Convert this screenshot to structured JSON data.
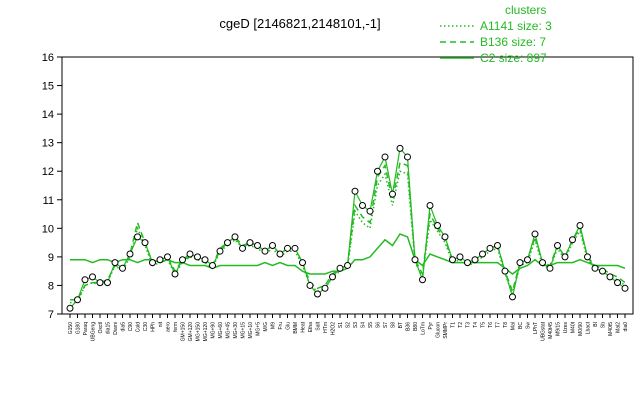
{
  "chart_data": {
    "type": "line",
    "title": "cgeD [2146821,2148101,-1]",
    "xlabel": "",
    "ylabel": "",
    "ylim": [
      7,
      16
    ],
    "yticks": [
      7,
      8,
      9,
      10,
      11,
      12,
      13,
      14,
      15,
      16
    ],
    "legend": {
      "title": "clusters",
      "placement": "top-right",
      "entries": [
        {
          "label": "A1141 size: 3",
          "style": "dotted"
        },
        {
          "label": "B136 size: 7",
          "style": "dashed"
        },
        {
          "label": "C2 size: 897",
          "style": "solid"
        }
      ]
    },
    "line_color": "#22bb22",
    "point_color": "#000000",
    "categories": [
      "G150",
      "G180",
      "Paraq",
      "UBGeng",
      "Oxctl",
      "dia15",
      "Diami",
      "dia5",
      "C90",
      "Cold",
      "C30",
      "HPh",
      "nit",
      "aero",
      "ferm",
      "GM+150",
      "GM+120",
      "MG+150",
      "MG+120",
      "MG+90",
      "MG+60",
      "MG+45",
      "MG+30",
      "MG+15",
      "MG+10",
      "MG+5",
      "M/G",
      "M9",
      "Fru",
      "Glu",
      "BMM",
      "Heat",
      "Etha",
      "Salt",
      "HTm",
      "H2O2",
      "S1",
      "S2",
      "S3",
      "S4",
      "S5",
      "S6",
      "S7",
      "S8",
      "BT",
      "B36",
      "B80",
      "LoTm",
      "Pyr",
      "Glucon",
      "SMMPr",
      "T1",
      "T2",
      "T3",
      "T4",
      "T5",
      "T6",
      "T7",
      "T8",
      "Mal",
      "BC",
      "Sw",
      "LPhT",
      "UBGstat",
      "M40t45",
      "M9/15",
      "Uzes",
      "M40t",
      "M0/90",
      "Lbact",
      "BI",
      "Sb",
      "M40t5",
      "Mal2",
      "dia0"
    ],
    "series": [
      {
        "values": [
          7.2,
          7.5,
          8.2,
          8.3,
          8.1,
          8.1,
          8.8,
          8.6,
          9.1,
          9.7,
          9.5,
          8.8,
          8.9,
          9.0,
          8.4,
          8.9,
          9.1,
          9.0,
          8.9,
          8.7,
          9.2,
          9.5,
          9.7,
          9.3,
          9.5,
          9.4,
          9.2,
          9.4,
          9.1,
          9.3,
          9.3,
          8.8,
          8.0,
          7.7,
          7.9,
          8.3,
          8.6,
          8.7,
          11.3,
          10.8,
          10.6,
          12.0,
          12.5,
          11.2,
          12.8,
          12.5,
          8.9,
          8.2,
          10.8,
          10.1,
          9.7,
          8.9,
          9.0,
          8.8,
          8.9,
          9.1,
          9.3,
          9.4,
          8.5,
          7.6,
          8.8,
          8.9,
          9.8,
          8.8,
          8.6,
          9.4,
          9.0,
          9.6,
          10.1,
          9.0,
          8.6,
          8.5,
          8.3,
          8.1,
          7.9
        ]
      },
      {
        "values": [
          8.9,
          8.9,
          8.9,
          8.8,
          8.9,
          8.9,
          8.8,
          8.9,
          8.9,
          8.8,
          8.9,
          8.9,
          8.8,
          8.9,
          8.8,
          8.8,
          8.7,
          8.7,
          8.7,
          8.6,
          8.7,
          8.7,
          8.7,
          8.7,
          8.7,
          8.7,
          8.8,
          8.7,
          8.8,
          8.7,
          8.7,
          8.5,
          8.4,
          8.4,
          8.4,
          8.5,
          8.5,
          8.6,
          8.9,
          8.9,
          9.0,
          9.3,
          9.6,
          9.4,
          9.8,
          9.7,
          8.9,
          8.7,
          9.1,
          9.0,
          8.9,
          8.8,
          8.8,
          8.8,
          8.8,
          8.8,
          8.8,
          8.8,
          8.6,
          8.4,
          8.6,
          8.7,
          8.9,
          8.7,
          8.7,
          8.8,
          8.8,
          8.8,
          8.9,
          8.8,
          8.7,
          8.7,
          8.7,
          8.7,
          8.6
        ]
      },
      {
        "values": [
          7.5,
          7.5,
          8.0,
          8.1,
          8.1,
          8.2,
          8.7,
          8.6,
          9.1,
          10.2,
          9.5,
          8.8,
          8.9,
          9.0,
          8.5,
          8.9,
          9.0,
          9.0,
          8.9,
          8.7,
          9.3,
          9.5,
          9.7,
          9.4,
          9.5,
          9.4,
          9.2,
          9.4,
          9.1,
          9.3,
          9.3,
          8.8,
          8.1,
          7.9,
          8.0,
          8.4,
          8.6,
          8.7,
          10.8,
          10.4,
          10.2,
          11.8,
          12.2,
          11.0,
          12.3,
          12.2,
          8.9,
          8.4,
          10.5,
          10.0,
          9.6,
          8.9,
          9.0,
          8.8,
          8.9,
          9.1,
          9.3,
          9.4,
          8.5,
          7.8,
          8.8,
          8.9,
          9.7,
          8.8,
          8.7,
          9.4,
          9.0,
          9.6,
          10.0,
          9.0,
          8.7,
          8.6,
          8.4,
          8.3,
          8.1
        ]
      },
      {
        "values": [
          7.4,
          7.4,
          8.0,
          8.1,
          8.0,
          8.1,
          8.7,
          8.5,
          9.0,
          10.0,
          9.4,
          8.7,
          8.8,
          8.9,
          8.4,
          8.8,
          9.0,
          8.9,
          8.8,
          8.6,
          9.2,
          9.4,
          9.6,
          9.3,
          9.4,
          9.3,
          9.1,
          9.3,
          9.0,
          9.2,
          9.2,
          8.7,
          8.0,
          7.8,
          7.9,
          8.3,
          8.5,
          8.6,
          10.6,
          10.2,
          10.0,
          11.5,
          11.9,
          10.8,
          12.0,
          11.9,
          8.8,
          8.3,
          10.3,
          9.9,
          9.5,
          8.8,
          8.9,
          8.7,
          8.8,
          9.0,
          9.2,
          9.3,
          8.4,
          7.7,
          8.7,
          8.8,
          9.6,
          8.7,
          8.6,
          9.3,
          8.9,
          9.5,
          9.9,
          8.9,
          8.6,
          8.5,
          8.3,
          8.2,
          8.0
        ]
      }
    ]
  }
}
